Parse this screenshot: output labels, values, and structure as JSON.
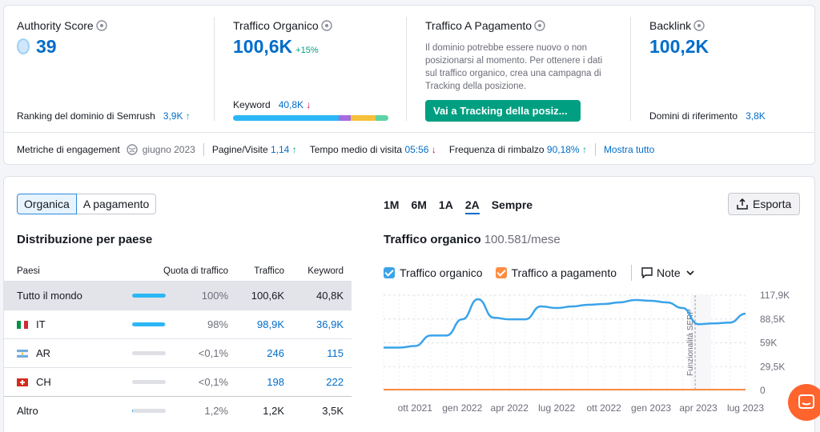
{
  "authority": {
    "title": "Authority Score",
    "value": "39",
    "foot_label": "Ranking del dominio di Semrush",
    "foot_value": "3,9K",
    "foot_trend": "↑"
  },
  "organic": {
    "title": "Traffico Organico",
    "value": "100,6K",
    "delta": "+15%",
    "kw_label": "Keyword",
    "kw_value": "40,8K",
    "kw_trend": "↓"
  },
  "paid": {
    "title": "Traffico A Pagamento",
    "text": "Il dominio potrebbe essere nuovo o non posizionarsi al momento. Per ottenere i dati sul traffico organico, crea una campagna di Tracking della posizione.",
    "button": "Vai a Tracking della posiz..."
  },
  "backlink": {
    "title": "Backlink",
    "value": "100,2K",
    "foot_label": "Domini di riferimento",
    "foot_value": "3,8K"
  },
  "engagement": {
    "label": "Metriche di engagement",
    "date": "giugno 2023",
    "pages_label": "Pagine/Visite",
    "pages_value": "1,14",
    "pages_trend": "↑",
    "time_label": "Tempo medio di visita",
    "time_value": "05:56",
    "time_trend": "↓",
    "bounce_label": "Frequenza di rimbalzo",
    "bounce_value": "90,18%",
    "bounce_trend": "↑",
    "show_all": "Mostra tutto"
  },
  "toggle": {
    "organic": "Organica",
    "paid": "A pagamento"
  },
  "distribution": {
    "title": "Distribuzione per paese",
    "headers": {
      "country": "Paesi",
      "share": "Quota di traffico",
      "traffic": "Traffico",
      "keyword": "Keyword"
    },
    "rows": [
      {
        "name": "Tutto il mondo",
        "share": "100%",
        "traffic": "100,6K",
        "keyword": "40,8K",
        "fill": 1.0
      },
      {
        "name": "IT",
        "share": "98%",
        "traffic": "98,9K",
        "keyword": "36,9K",
        "fill": 0.98
      },
      {
        "name": "AR",
        "share": "<0,1%",
        "traffic": "246",
        "keyword": "115",
        "fill": 0.0
      },
      {
        "name": "CH",
        "share": "<0,1%",
        "traffic": "198",
        "keyword": "222",
        "fill": 0.0
      },
      {
        "name": "Altro",
        "share": "1,2%",
        "traffic": "1,2K",
        "keyword": "3,5K",
        "fill": 0.012
      }
    ]
  },
  "periods": [
    "1M",
    "6M",
    "1A",
    "2A",
    "Sempre"
  ],
  "active_period": "2A",
  "export_label": "Esporta",
  "chart_title": "Traffico organico",
  "chart_subtitle": "100.581/mese",
  "legend": {
    "organic": "Traffico organico",
    "paid": "Traffico a pagamento",
    "notes": "Note"
  },
  "colors": {
    "organic": "#3aa3e9",
    "paid": "#ff8c42",
    "button": "#009f81",
    "accent": "#006dca"
  },
  "chart_data": {
    "type": "line",
    "x_tick_labels": [
      "ott 2021",
      "gen 2022",
      "apr 2022",
      "lug 2022",
      "ott 2022",
      "gen 2023",
      "apr 2023",
      "lug 2023"
    ],
    "y_tick_labels": [
      "117,9K",
      "88,5K",
      "59K",
      "29,5K",
      "0"
    ],
    "ylim": [
      0,
      117900
    ],
    "annotation": "Funzionalità SERP",
    "series": [
      {
        "name": "Traffico organico",
        "x": [
          "2021-08",
          "2021-09",
          "2021-10",
          "2021-11",
          "2021-12",
          "2022-01",
          "2022-02",
          "2022-03",
          "2022-04",
          "2022-05",
          "2022-06",
          "2022-07",
          "2022-08",
          "2022-09",
          "2022-10",
          "2022-11",
          "2022-12",
          "2023-01",
          "2023-02",
          "2023-03",
          "2023-04",
          "2023-05",
          "2023-06",
          "2023-07"
        ],
        "values": [
          53000,
          53000,
          55000,
          68000,
          68000,
          88000,
          113000,
          90000,
          88000,
          88000,
          104000,
          102000,
          104000,
          106000,
          107000,
          109000,
          112000,
          111000,
          109000,
          102000,
          82000,
          83000,
          84000,
          95000
        ]
      },
      {
        "name": "Traffico a pagamento",
        "x": [
          "2021-08",
          "2023-07"
        ],
        "values": [
          0,
          0
        ]
      }
    ]
  }
}
